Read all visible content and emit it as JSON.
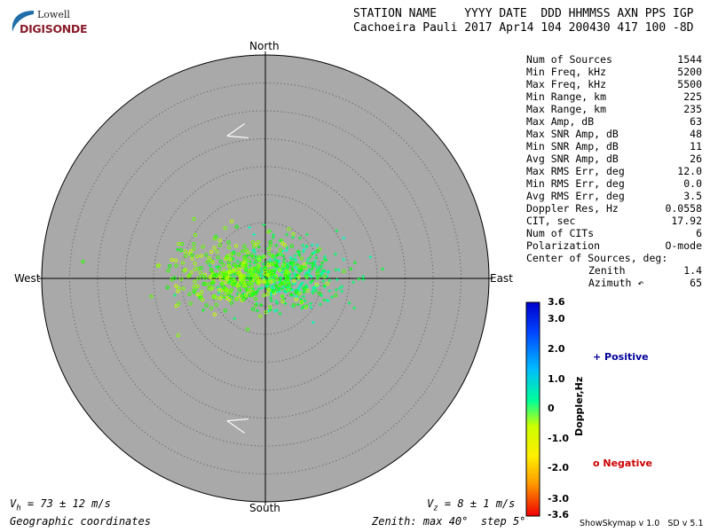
{
  "logo": {
    "line1": "Lowell",
    "line2": "DIGISONDE"
  },
  "header": {
    "line1": "STATION NAME    YYYY DATE  DDD HHMMSS AXN PPS IGP",
    "line2": "Cachoeira Pauli 2017 Apr14 104 200430 417 100 -8D"
  },
  "compass": {
    "north": "North",
    "south": "South",
    "east": "East",
    "west": "West"
  },
  "stats": [
    {
      "label": "Num of Sources",
      "value": "1544"
    },
    {
      "label": "Min Freq, kHz",
      "value": "5200"
    },
    {
      "label": "Max Freq, kHz",
      "value": "5500"
    },
    {
      "label": "Min Range, km",
      "value": "225"
    },
    {
      "label": "Max Range, km",
      "value": "235"
    },
    {
      "label": "Max Amp, dB",
      "value": "63"
    },
    {
      "label": "Max SNR Amp, dB",
      "value": "48"
    },
    {
      "label": "Min SNR Amp, dB",
      "value": "11"
    },
    {
      "label": "Avg SNR Amp, dB",
      "value": "26"
    },
    {
      "label": "Max RMS Err, deg",
      "value": "12.0"
    },
    {
      "label": "Min RMS Err, deg",
      "value": "0.0"
    },
    {
      "label": "Avg RMS Err, deg",
      "value": "3.5"
    },
    {
      "label": "Doppler Res, Hz",
      "value": "0.0558"
    },
    {
      "label": "CIT, sec",
      "value": "17.92"
    },
    {
      "label": "Num of CITs",
      "value": "6"
    },
    {
      "label": "Polarization",
      "value": "O-mode"
    }
  ],
  "center_of_sources": {
    "title": "Center of Sources, deg:",
    "zenith_label": "Zenith",
    "zenith_value": "1.4",
    "azimuth_label": "Azimuth ↶",
    "azimuth_value": "65"
  },
  "colorbar": {
    "label": "Doppler,Hz",
    "ticks": [
      "3.6",
      "3.0",
      "2.0",
      "1.0",
      "0",
      "-1.0",
      "-2.0",
      "-3.0",
      "-3.6"
    ],
    "range": [
      -3.6,
      3.6
    ]
  },
  "legend": {
    "positive": "+ Positive",
    "negative": "o Negative",
    "positive_color": "#000099",
    "negative_color": "#cc0000"
  },
  "footer": {
    "vh": "73 ± 12 m/s",
    "vz": "8 ± 1 m/s",
    "coords": "Geographic coordinates",
    "zenith": "Zenith: max 40°  step 5°",
    "version": "ShowSkymap v 1.0   SD v 5.1"
  },
  "colors": {
    "disk": "#a9a9a9",
    "positive_cluster": "#33ff99",
    "negative_cluster": "#e6ff00"
  },
  "chart_data": {
    "type": "scatter",
    "coordinate_system": "polar (zenith angle, azimuth)",
    "zenith_max_deg": 40,
    "zenith_step_deg": 5,
    "num_sources": 1544,
    "center_of_sources": {
      "zenith_deg": 1.4,
      "azimuth_deg": 65
    },
    "velocity": {
      "vh": "73 ± 12 m/s",
      "vz": "8 ± 1 m/s"
    },
    "series": [
      {
        "name": "Positive",
        "marker": "+",
        "doppler_range_hz": [
          0,
          1.5
        ],
        "centroid_zenith_deg": 3,
        "centroid_azimuth_deg": 80,
        "spread_deg": 10
      },
      {
        "name": "Negative",
        "marker": "o",
        "doppler_range_hz": [
          -1.5,
          0
        ],
        "centroid_zenith_deg": 5,
        "centroid_azimuth_deg": 275,
        "spread_deg": 10
      }
    ],
    "velocity_arrows_az_deg": [
      345,
      195
    ],
    "color_scale": {
      "min": -3.6,
      "max": 3.6,
      "label": "Doppler,Hz"
    }
  }
}
